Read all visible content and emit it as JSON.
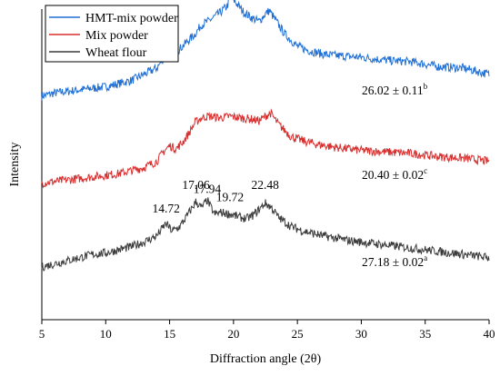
{
  "chart_data": {
    "type": "line",
    "title": "",
    "xlabel": "Diffraction angle (2θ)",
    "ylabel": "Intensity",
    "xlim": [
      5,
      40
    ],
    "ylim": [
      0,
      1
    ],
    "xticks": [
      "5",
      "10",
      "15",
      "20",
      "25",
      "30",
      "35",
      "40"
    ],
    "grid": false,
    "legend_placement": "top-left",
    "series": [
      {
        "name": "HMT-mix powder",
        "color": "#1f6fd6",
        "crystallinity": {
          "value": "26.02 ± 0.11",
          "sup": "b"
        },
        "points": [
          [
            5.0,
            0.72
          ],
          [
            6.0,
            0.73
          ],
          [
            7.0,
            0.735
          ],
          [
            8.0,
            0.74
          ],
          [
            9.0,
            0.745
          ],
          [
            10.0,
            0.75
          ],
          [
            11.0,
            0.76
          ],
          [
            12.0,
            0.77
          ],
          [
            13.0,
            0.79
          ],
          [
            14.0,
            0.81
          ],
          [
            14.5,
            0.84
          ],
          [
            15.0,
            0.87
          ],
          [
            15.5,
            0.86
          ],
          [
            16.0,
            0.88
          ],
          [
            16.5,
            0.9
          ],
          [
            17.0,
            0.92
          ],
          [
            17.5,
            0.95
          ],
          [
            18.0,
            0.96
          ],
          [
            18.5,
            0.975
          ],
          [
            19.0,
            0.99
          ],
          [
            19.5,
            1.01
          ],
          [
            19.8,
            1.04
          ],
          [
            20.2,
            1.02
          ],
          [
            20.8,
            0.99
          ],
          [
            21.5,
            0.97
          ],
          [
            22.0,
            0.96
          ],
          [
            22.5,
            0.985
          ],
          [
            22.8,
            0.995
          ],
          [
            23.2,
            0.97
          ],
          [
            24.0,
            0.92
          ],
          [
            25.0,
            0.88
          ],
          [
            26.0,
            0.865
          ],
          [
            27.0,
            0.855
          ],
          [
            28.0,
            0.85
          ],
          [
            30.0,
            0.845
          ],
          [
            32.0,
            0.835
          ],
          [
            34.0,
            0.83
          ],
          [
            36.0,
            0.815
          ],
          [
            38.0,
            0.81
          ],
          [
            40.0,
            0.79
          ]
        ]
      },
      {
        "name": "Mix powder",
        "color": "#d92e2e",
        "crystallinity": {
          "value": "20.40 ± 0.02",
          "sup": "c"
        },
        "points": [
          [
            5.0,
            0.44
          ],
          [
            6.0,
            0.445
          ],
          [
            7.0,
            0.45
          ],
          [
            8.0,
            0.455
          ],
          [
            9.0,
            0.46
          ],
          [
            10.0,
            0.465
          ],
          [
            11.0,
            0.47
          ],
          [
            12.0,
            0.48
          ],
          [
            13.0,
            0.49
          ],
          [
            14.0,
            0.51
          ],
          [
            14.5,
            0.54
          ],
          [
            15.0,
            0.56
          ],
          [
            15.5,
            0.55
          ],
          [
            16.0,
            0.57
          ],
          [
            16.5,
            0.6
          ],
          [
            17.0,
            0.635
          ],
          [
            17.5,
            0.65
          ],
          [
            18.0,
            0.655
          ],
          [
            19.0,
            0.65
          ],
          [
            19.72,
            0.655
          ],
          [
            20.5,
            0.65
          ],
          [
            21.5,
            0.645
          ],
          [
            22.0,
            0.64
          ],
          [
            22.5,
            0.655
          ],
          [
            22.9,
            0.665
          ],
          [
            23.5,
            0.63
          ],
          [
            24.5,
            0.59
          ],
          [
            25.5,
            0.575
          ],
          [
            26.5,
            0.565
          ],
          [
            28.0,
            0.555
          ],
          [
            30.0,
            0.545
          ],
          [
            32.0,
            0.54
          ],
          [
            34.0,
            0.535
          ],
          [
            36.0,
            0.525
          ],
          [
            38.0,
            0.52
          ],
          [
            40.0,
            0.51
          ]
        ]
      },
      {
        "name": "Wheat flour",
        "color": "#3a3a3a",
        "crystallinity": {
          "value": "27.18 ± 0.02",
          "sup": "a"
        },
        "points": [
          [
            5.0,
            0.17
          ],
          [
            6.0,
            0.18
          ],
          [
            7.0,
            0.19
          ],
          [
            8.0,
            0.2
          ],
          [
            9.0,
            0.21
          ],
          [
            10.0,
            0.215
          ],
          [
            11.0,
            0.225
          ],
          [
            12.0,
            0.235
          ],
          [
            13.0,
            0.25
          ],
          [
            14.0,
            0.27
          ],
          [
            14.72,
            0.31
          ],
          [
            15.2,
            0.285
          ],
          [
            15.8,
            0.3
          ],
          [
            16.3,
            0.33
          ],
          [
            17.06,
            0.38
          ],
          [
            17.5,
            0.36
          ],
          [
            17.94,
            0.385
          ],
          [
            18.5,
            0.34
          ],
          [
            19.0,
            0.345
          ],
          [
            19.72,
            0.34
          ],
          [
            20.5,
            0.33
          ],
          [
            21.0,
            0.325
          ],
          [
            21.5,
            0.335
          ],
          [
            22.0,
            0.355
          ],
          [
            22.48,
            0.375
          ],
          [
            23.0,
            0.36
          ],
          [
            23.5,
            0.33
          ],
          [
            24.5,
            0.3
          ],
          [
            25.5,
            0.285
          ],
          [
            27.0,
            0.27
          ],
          [
            29.0,
            0.255
          ],
          [
            31.0,
            0.245
          ],
          [
            33.0,
            0.235
          ],
          [
            35.0,
            0.225
          ],
          [
            37.0,
            0.215
          ],
          [
            40.0,
            0.2
          ]
        ]
      }
    ],
    "peak_labels": [
      {
        "label": "14.72",
        "x": 14.72
      },
      {
        "label": "17.06",
        "x": 17.06
      },
      {
        "label": "17.94",
        "x": 17.94
      },
      {
        "label": "19.72",
        "x": 19.72
      },
      {
        "label": "22.48",
        "x": 22.48
      }
    ]
  }
}
